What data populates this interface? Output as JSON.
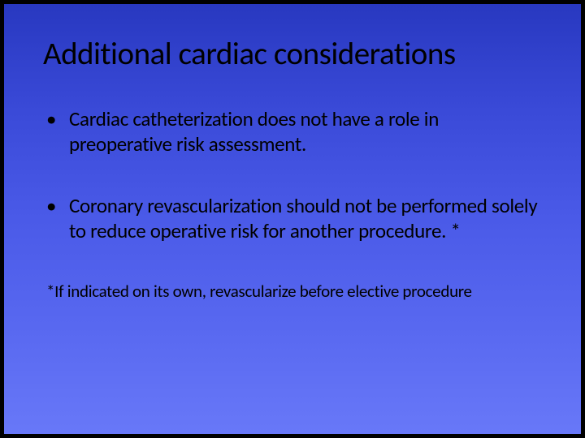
{
  "slide": {
    "background_gradient": [
      "#2838c0",
      "#3a4ad8",
      "#4a5ae8",
      "#5868f0",
      "#6878f8"
    ],
    "border_color": "#000000",
    "text_color": "#000000",
    "font_family": "Calibri",
    "title": {
      "text": "Additional cardiac considerations",
      "fontsize": 39
    },
    "bullets": [
      "Cardiac catheterization does not have a role in preoperative risk assessment.",
      "Coronary revascularization should not be performed solely to reduce operative risk for another procedure. *"
    ],
    "bullet_fontsize": 25,
    "footnote": {
      "text": "*If indicated on its own, revascularize before elective procedure",
      "fontsize": 21
    }
  }
}
